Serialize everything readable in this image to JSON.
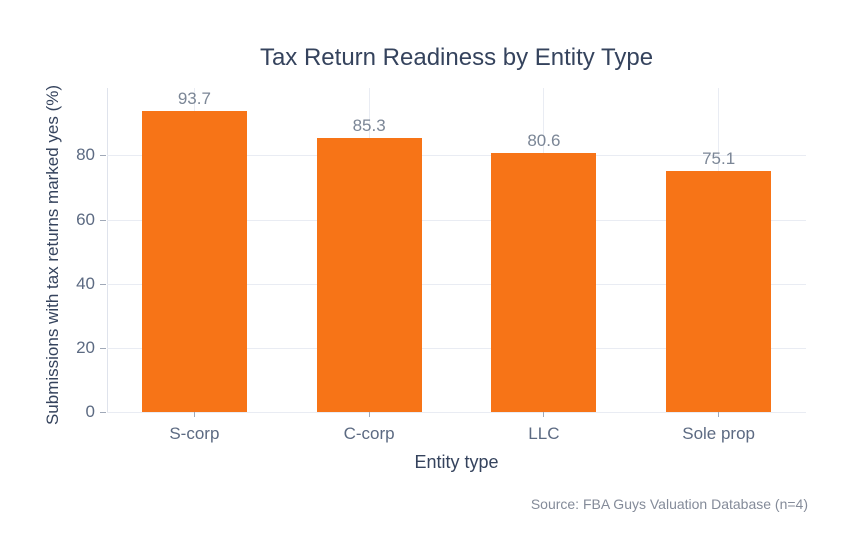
{
  "colors": {
    "bar": "#f77417",
    "grid": "#e9ecf3",
    "axis": "#dfe3ec",
    "tick": "#a0a9b8",
    "ticktext": "#5c6a82",
    "title": "#35435d",
    "vallabel": "#7b8696",
    "muted": "#848b99"
  },
  "chart_data": {
    "type": "bar",
    "title": "Tax Return Readiness by Entity Type",
    "categories": [
      "S-corp",
      "C-corp",
      "LLC",
      "Sole prop"
    ],
    "values": [
      93.7,
      85.3,
      80.6,
      75.1
    ],
    "value_labels": [
      "93.7",
      "85.3",
      "80.6",
      "75.1"
    ],
    "xlabel": "Entity type",
    "ylabel": "Submissions with tax returns marked yes (%)",
    "yticks": [
      0,
      20,
      40,
      60,
      80
    ],
    "ylim": [
      0,
      101
    ],
    "grid": true,
    "legend": false,
    "source_note": "Source: FBA Guys Valuation Database (n=4)"
  }
}
